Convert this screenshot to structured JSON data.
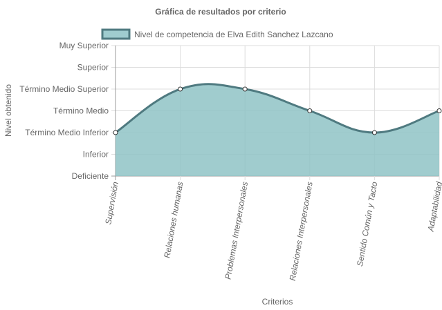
{
  "chart_data": {
    "type": "area",
    "title": "Gráfica de resultados por criterio",
    "xlabel": "Criterios",
    "ylabel": "Nivel obtenido",
    "categories": [
      "Supervisión",
      "Relaciones humanas",
      "Problemas Interpersonales",
      "Relaciones Interpersonales",
      "Sentido Común y Tacto",
      "Adaptabilidad"
    ],
    "y_levels": [
      "Deficiente",
      "Inferior",
      "Término Medio Inferior",
      "Término Medio",
      "Término Medio Superior",
      "Superior",
      "Muy Superior"
    ],
    "series": [
      {
        "name": "Nivel de competencia de Elva Edith Sanchez Lazcano",
        "values": [
          2,
          4,
          4,
          3,
          2,
          3
        ]
      }
    ],
    "ylim": [
      0,
      6
    ],
    "grid": true,
    "legend_position": "top",
    "colors": {
      "fill": "#8fc3c6",
      "line": "#4f7a80",
      "point_fill": "#ffffff",
      "grid": "#dcdcdc",
      "axis": "#999999"
    }
  }
}
